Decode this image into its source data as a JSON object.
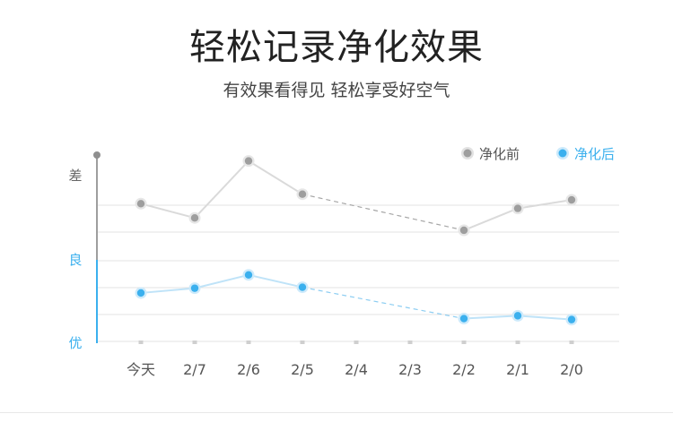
{
  "header": {
    "title": "轻松记录净化效果",
    "subtitle": "有效果看得见 轻松享受好空气"
  },
  "colors": {
    "before": "#9e9e9e",
    "after": "#3bb0ee",
    "axis_left": "#3bb0ee",
    "grid": "#e3e3e3"
  },
  "chart_data": {
    "type": "line",
    "categories": [
      "今天",
      "2/7",
      "2/6",
      "2/5",
      "2/4",
      "2/3",
      "2/2",
      "2/1",
      "2/0"
    ],
    "y_levels": [
      "优",
      "良",
      "差"
    ],
    "legend": [
      {
        "name": "净化前",
        "color": "#9e9e9e"
      },
      {
        "name": "净化后",
        "color": "#3bb0ee"
      }
    ],
    "legend_position": "top-right",
    "grid": true,
    "series": [
      {
        "name": "净化前",
        "values": [
          1.45,
          1.3,
          1.9,
          1.55,
          null,
          null,
          1.17,
          1.4,
          1.49
        ]
      },
      {
        "name": "净化后",
        "values": [
          0.51,
          0.56,
          0.7,
          0.57,
          null,
          null,
          0.24,
          0.27,
          0.23
        ]
      }
    ],
    "ylim": [
      0,
      2
    ],
    "notes": "missing days (2/4, 2/3) bridged with dashed line"
  }
}
